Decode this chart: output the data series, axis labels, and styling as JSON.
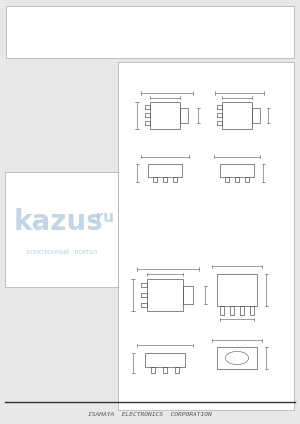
{
  "bg_color": "#e8e8e8",
  "page_bg": "#ffffff",
  "border_color": "#888888",
  "line_color": "#555555",
  "text_color": "#333333",
  "footer_text": "ISAHAYA  ELECTRONICS  CORPORATION",
  "footer_color": "#555555",
  "watermark_color": "#c8d8e8",
  "watermark_text": "kazus.ru",
  "sub_watermark": "ЭЛЕКТРОННЫЙ   ПОРТАЛ"
}
